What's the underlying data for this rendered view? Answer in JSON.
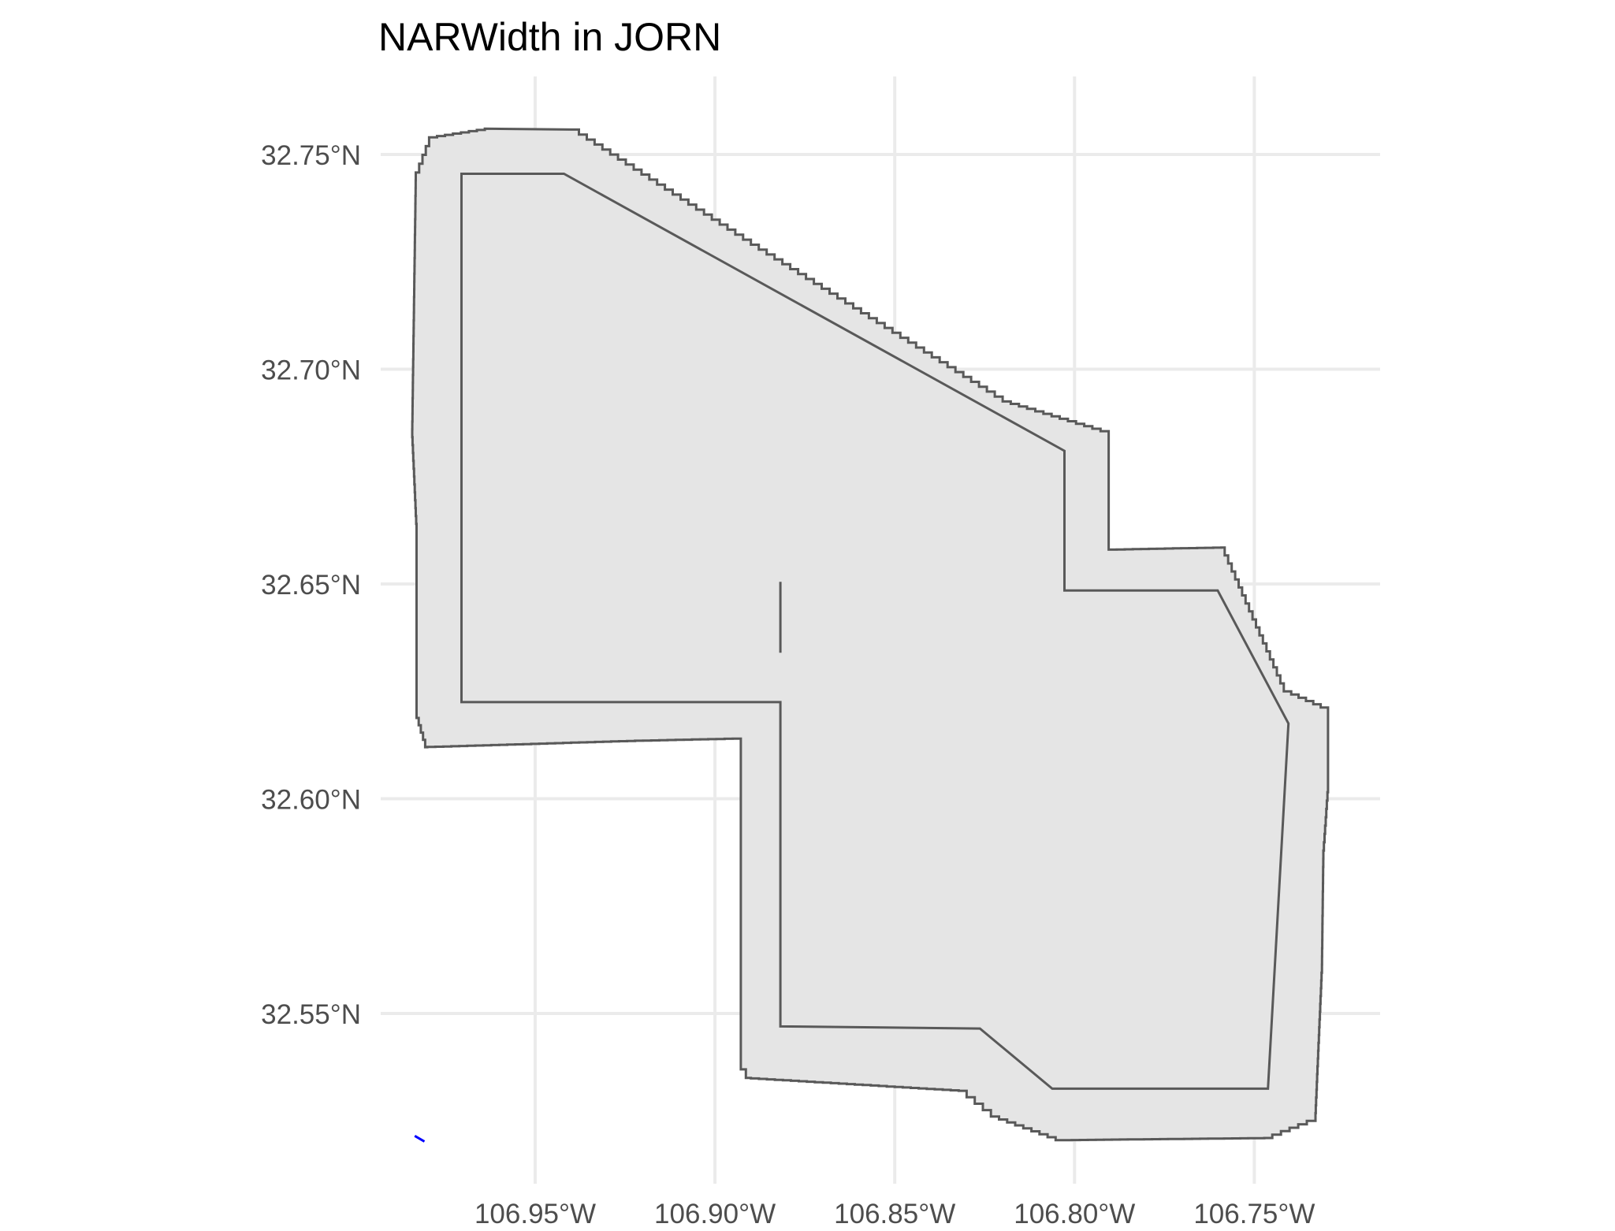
{
  "title": "NARWidth in JORN",
  "colors": {
    "grid": "#ebebeb",
    "fill": "#e5e5e5",
    "outline": "#595959",
    "river": "#0000ff",
    "tick_text": "#4d4d4d",
    "title_text": "#000000"
  },
  "x_axis": {
    "ticks": [
      {
        "value": -106.95,
        "label": "106.95°W"
      },
      {
        "value": -106.9,
        "label": "106.90°W"
      },
      {
        "value": -106.85,
        "label": "106.85°W"
      },
      {
        "value": -106.8,
        "label": "106.80°W"
      },
      {
        "value": -106.75,
        "label": "106.75°W"
      }
    ]
  },
  "y_axis": {
    "ticks": [
      {
        "value": 32.75,
        "label": "32.75°N"
      },
      {
        "value": 32.7,
        "label": "32.70°N"
      },
      {
        "value": 32.65,
        "label": "32.65°N"
      },
      {
        "value": 32.6,
        "label": "32.60°N"
      },
      {
        "value": 32.55,
        "label": "32.55°N"
      }
    ]
  },
  "map_layers": {
    "buffer_boundary": [
      [
        -106.9832,
        32.7458
      ],
      [
        -106.9795,
        32.754
      ],
      [
        -106.964,
        32.756
      ],
      [
        -106.94,
        32.7558
      ],
      [
        -106.89,
        32.729
      ],
      [
        -106.82,
        32.6925
      ],
      [
        -106.7905,
        32.685
      ],
      [
        -106.7905,
        32.658
      ],
      [
        -106.7592,
        32.6585
      ],
      [
        -106.7418,
        32.625
      ],
      [
        -106.7295,
        32.6205
      ],
      [
        -106.7295,
        32.6015
      ],
      [
        -106.7308,
        32.586
      ],
      [
        -106.7312,
        32.5595
      ],
      [
        -106.733,
        32.525
      ],
      [
        -106.745,
        32.521
      ],
      [
        -106.803,
        32.5205
      ],
      [
        -106.821,
        32.526
      ],
      [
        -106.83,
        32.532
      ],
      [
        -106.89,
        32.535
      ],
      [
        -106.8928,
        32.539
      ],
      [
        -106.8928,
        32.614
      ],
      [
        -106.92,
        32.6135
      ],
      [
        -106.98,
        32.612
      ],
      [
        -106.983,
        32.6205
      ],
      [
        -106.983,
        32.664
      ],
      [
        -106.9842,
        32.686
      ]
    ],
    "site_boundary": [
      [
        -106.9705,
        32.7455
      ],
      [
        -106.942,
        32.7455
      ],
      [
        -106.8028,
        32.681
      ],
      [
        -106.8028,
        32.6485
      ],
      [
        -106.7602,
        32.6485
      ],
      [
        -106.7405,
        32.6175
      ],
      [
        -106.7462,
        32.5325
      ],
      [
        -106.8062,
        32.5325
      ],
      [
        -106.8263,
        32.5465
      ],
      [
        -106.8818,
        32.547
      ],
      [
        -106.8818,
        32.6225
      ],
      [
        -106.9705,
        32.6225
      ]
    ],
    "interior_line": [
      [
        -106.8818,
        32.6505
      ],
      [
        -106.8818,
        32.634
      ]
    ],
    "river_segment": [
      [
        -106.9835,
        32.5215
      ],
      [
        -106.9808,
        32.5202
      ]
    ]
  }
}
